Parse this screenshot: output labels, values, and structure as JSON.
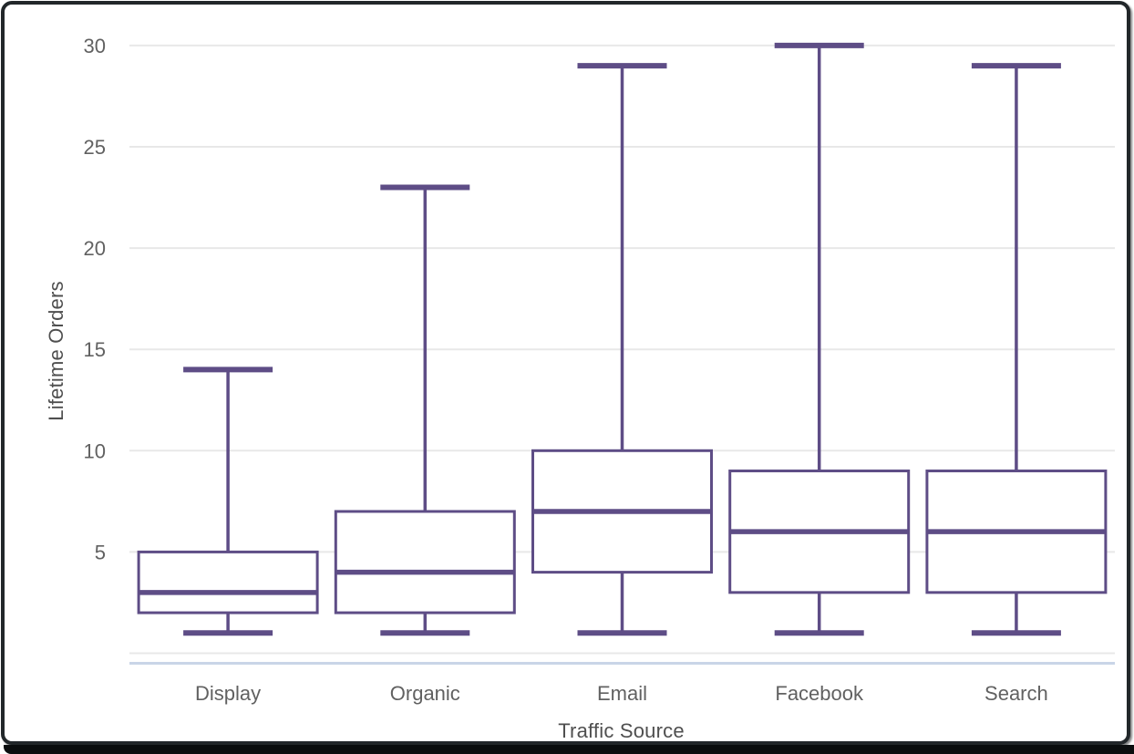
{
  "window": {
    "background": "#ffffff",
    "frame_border_color": "#22272a",
    "bottom_edge_color": "#0a0d0e"
  },
  "chart_data": {
    "type": "boxplot",
    "title": "",
    "xlabel": "Traffic Source",
    "ylabel": "Lifetime Orders",
    "categories": [
      "Display",
      "Organic",
      "Email",
      "Facebook",
      "Search"
    ],
    "series": [
      {
        "name": "Display",
        "min": 1,
        "q1": 2,
        "median": 3,
        "q3": 5,
        "max": 14
      },
      {
        "name": "Organic",
        "min": 1,
        "q1": 2,
        "median": 4,
        "q3": 7,
        "max": 23
      },
      {
        "name": "Email",
        "min": 1,
        "q1": 4,
        "median": 7,
        "q3": 10,
        "max": 29
      },
      {
        "name": "Facebook",
        "min": 1,
        "q1": 3,
        "median": 6,
        "q3": 9,
        "max": 30
      },
      {
        "name": "Search",
        "min": 1,
        "q1": 3,
        "median": 6,
        "q3": 9,
        "max": 29
      }
    ],
    "yticks": [
      5,
      10,
      15,
      20,
      25,
      30
    ],
    "ylim": [
      0,
      31.2
    ],
    "grid": true,
    "legend": "none",
    "colors": {
      "box_stroke": "#5e4d86",
      "box_fill": "#ffffff",
      "gridline": "#e8e8e8",
      "axis_line": "#c9d5e7",
      "tick_label": "#616161",
      "axis_title": "#4f4f4f"
    }
  }
}
